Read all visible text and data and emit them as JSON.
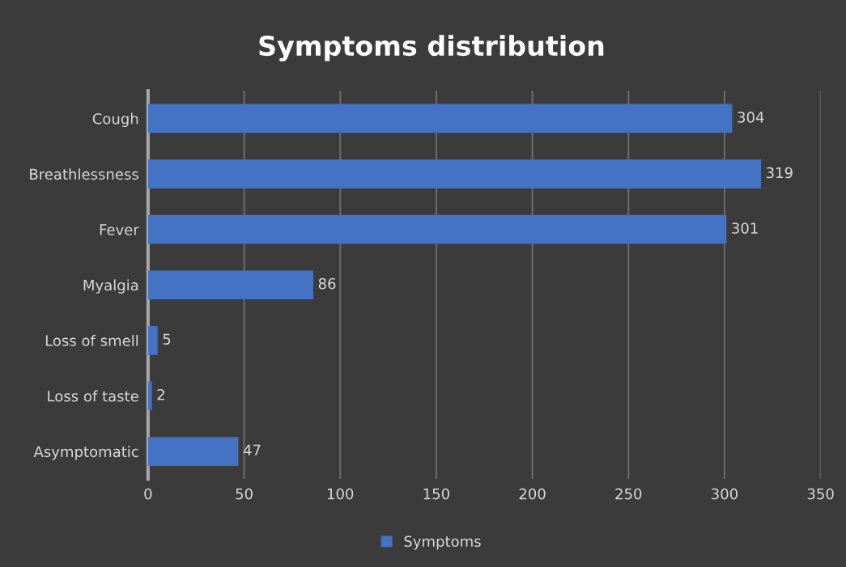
{
  "chart_data": {
    "type": "bar",
    "orientation": "horizontal",
    "title": "Symptoms distribution",
    "categories": [
      "Cough",
      "Breathlessness",
      "Fever",
      "Myalgia",
      "Loss of smell",
      "Loss of taste",
      "Asymptomatic"
    ],
    "series": [
      {
        "name": "Symptoms",
        "color": "#4472c4",
        "values": [
          304,
          319,
          301,
          86,
          5,
          2,
          47
        ]
      }
    ],
    "xlim": [
      0,
      350
    ],
    "xticks": [
      0,
      50,
      100,
      150,
      200,
      250,
      300,
      350
    ],
    "grid": "x",
    "legend": "bottom",
    "data_labels": true
  }
}
